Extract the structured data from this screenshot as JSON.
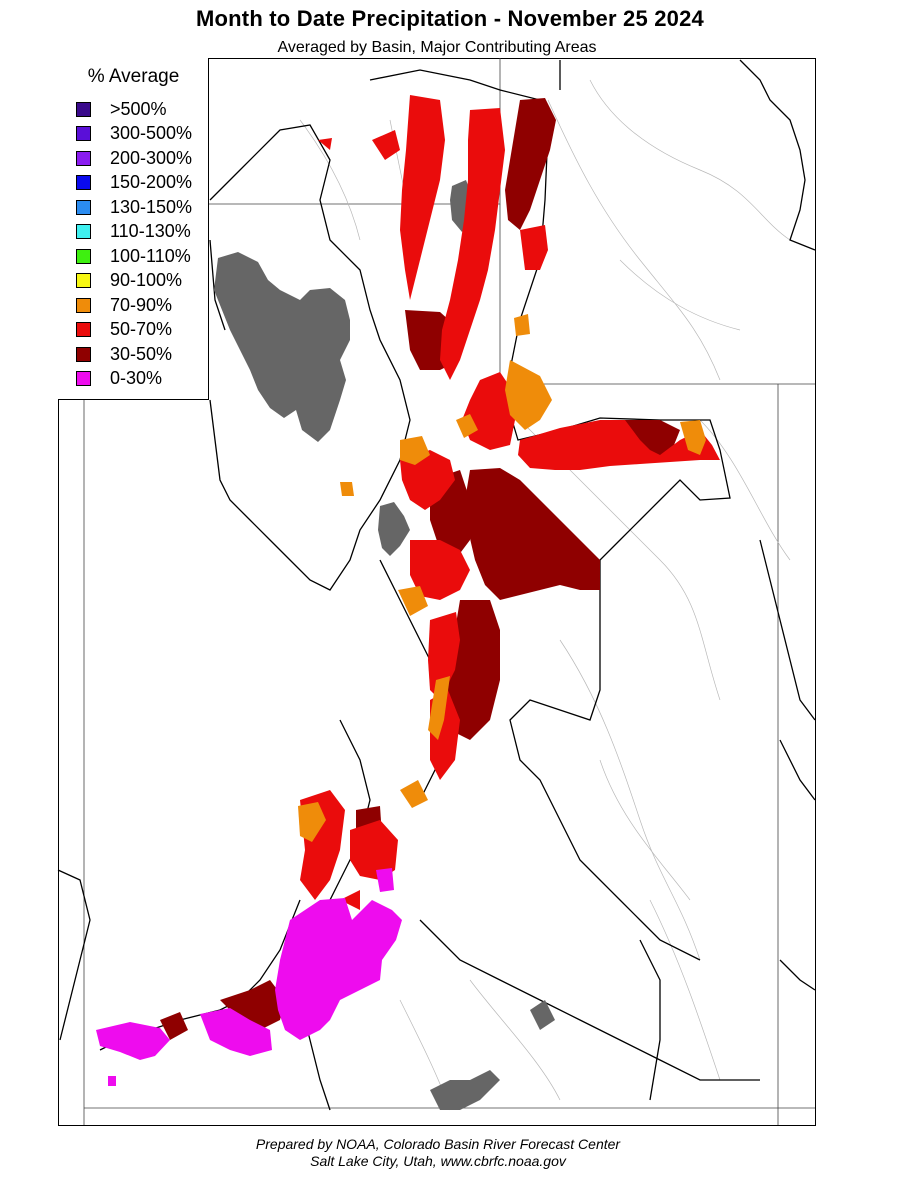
{
  "title": "Month to Date Precipitation - November 25 2024",
  "subtitle": "Averaged by Basin, Major Contributing Areas",
  "legend": {
    "title": "% Average",
    "items": [
      {
        "label": ">500%",
        "color": "#3a0a8c"
      },
      {
        "label": "300-500%",
        "color": "#5a0fd8"
      },
      {
        "label": "200-300%",
        "color": "#8a1cf0"
      },
      {
        "label": "150-200%",
        "color": "#0a0aee"
      },
      {
        "label": "130-150%",
        "color": "#2b8cf0"
      },
      {
        "label": "110-130%",
        "color": "#3ff0f0"
      },
      {
        "label": "100-110%",
        "color": "#3ef010"
      },
      {
        "label": "90-100%",
        "color": "#f7f712"
      },
      {
        "label": "70-90%",
        "color": "#ef8c0a"
      },
      {
        "label": "50-70%",
        "color": "#ea0c0c"
      },
      {
        "label": "30-50%",
        "color": "#8f0000"
      },
      {
        "label": "0-30%",
        "color": "#ee0cee"
      }
    ]
  },
  "footer": {
    "line1": "Prepared by NOAA, Colorado Basin River Forecast Center",
    "line2": "Salt Lake City, Utah, www.cbrfc.noaa.gov"
  }
}
